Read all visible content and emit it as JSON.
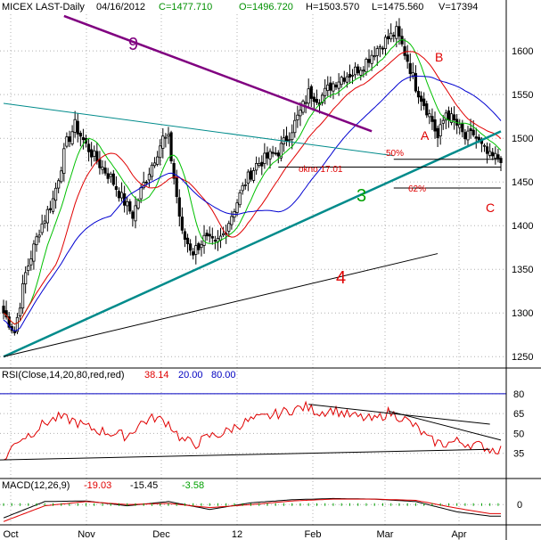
{
  "colors": {
    "background": "#ffffff",
    "grid": "#b0b0b0",
    "candle": "#000000",
    "ma_green": "#00c000",
    "ma_red": "#e00000",
    "ma_blue": "#0000d0",
    "trend_teal": "#008b8b",
    "trend_purple": "#800080",
    "rsi_line": "#e00000",
    "rsi_level_80": "#0000c0",
    "fib_text": "#e00000",
    "macd_black": "#000000",
    "macd_red": "#e00000",
    "macd_green": "#00a000"
  },
  "header": {
    "symbol": "MICEX LAST-Daily",
    "date": "04/16/2012",
    "close": "C=1477.710",
    "open": "O=1496.720",
    "high": "H=1503.570",
    "low": "L=1475.560",
    "volume": "V=17394"
  },
  "rsi_header": {
    "label": "RSI(Close,14,20,80,red,red)",
    "value": "38.14",
    "low_level": "20.00",
    "high_level": "80.00"
  },
  "macd_header": {
    "label": "MACD(12,26,9)",
    "v1": "-19.03",
    "v2": "-15.45",
    "v3": "-3.58"
  },
  "annotations": {
    "line9": "9",
    "line3": "3",
    "line4": "4",
    "point_a": "A",
    "point_b": "B",
    "point_c": "C",
    "fib50": "50%",
    "fib62": "62%",
    "gap": "okno 17.01"
  },
  "chart_data": [
    {
      "type": "candlestick",
      "title": "MICEX LAST-Daily",
      "x_ticks": [
        "Oct",
        "Nov",
        "Dec",
        "12",
        "Feb",
        "Mar",
        "Apr"
      ],
      "y_ticks": [
        1250,
        1300,
        1350,
        1400,
        1450,
        1500,
        1550,
        1600
      ],
      "ylim": [
        1238,
        1642
      ],
      "grid": true,
      "anchors_close": [
        [
          0,
          1300
        ],
        [
          4,
          1278
        ],
        [
          8,
          1345
        ],
        [
          13,
          1395
        ],
        [
          18,
          1430
        ],
        [
          23,
          1495
        ],
        [
          26,
          1515
        ],
        [
          30,
          1492
        ],
        [
          35,
          1470
        ],
        [
          39,
          1455
        ],
        [
          43,
          1432
        ],
        [
          47,
          1412
        ],
        [
          50,
          1440
        ],
        [
          54,
          1470
        ],
        [
          58,
          1500
        ],
        [
          60,
          1498
        ],
        [
          62,
          1455
        ],
        [
          65,
          1390
        ],
        [
          69,
          1370
        ],
        [
          73,
          1385
        ],
        [
          77,
          1378
        ],
        [
          80,
          1390
        ],
        [
          84,
          1420
        ],
        [
          88,
          1450
        ],
        [
          92,
          1470
        ],
        [
          96,
          1478
        ],
        [
          100,
          1485
        ],
        [
          104,
          1505
        ],
        [
          108,
          1530
        ],
        [
          111,
          1552
        ],
        [
          115,
          1545
        ],
        [
          119,
          1560
        ],
        [
          123,
          1570
        ],
        [
          127,
          1575
        ],
        [
          131,
          1585
        ],
        [
          135,
          1600
        ],
        [
          139,
          1612
        ],
        [
          143,
          1622
        ],
        [
          147,
          1590
        ],
        [
          150,
          1560
        ],
        [
          153,
          1540
        ],
        [
          156,
          1520
        ],
        [
          158,
          1500
        ],
        [
          161,
          1530
        ],
        [
          165,
          1515
        ],
        [
          168,
          1500
        ],
        [
          171,
          1505
        ],
        [
          174,
          1490
        ],
        [
          177,
          1478
        ]
      ],
      "moving_averages": [
        {
          "color": "green",
          "period": 10
        },
        {
          "color": "red",
          "period": 20
        },
        {
          "color": "blue",
          "period": 40
        }
      ],
      "trendlines": [
        {
          "name": "9",
          "from": [
            22,
            1640
          ],
          "to": [
            134,
            1508
          ],
          "color": "purple"
        },
        {
          "name": "3",
          "from": [
            0,
            1250
          ],
          "to": [
            181,
            1508
          ],
          "color": "teal"
        },
        {
          "name": "4",
          "from": [
            0,
            1250
          ],
          "to": [
            158,
            1368
          ],
          "color": "black"
        },
        {
          "name": "upper",
          "from": [
            0,
            1540
          ],
          "to": [
            142,
            1480
          ],
          "color": "teal-thin"
        }
      ],
      "levels": [
        {
          "name": "50%",
          "value": 1476
        },
        {
          "name": "okno 17.01",
          "value": 1467
        },
        {
          "name": "62%",
          "value": 1443
        }
      ]
    },
    {
      "type": "line",
      "title": "RSI(Close,14,20,80,red,red)",
      "y_ticks": [
        35,
        50,
        65,
        80
      ],
      "ylim": [
        22,
        88
      ],
      "levels": [
        80
      ],
      "anchors": [
        [
          0,
          30
        ],
        [
          5,
          45
        ],
        [
          10,
          50
        ],
        [
          15,
          58
        ],
        [
          20,
          62
        ],
        [
          25,
          60
        ],
        [
          30,
          55
        ],
        [
          35,
          52
        ],
        [
          40,
          50
        ],
        [
          45,
          48
        ],
        [
          50,
          58
        ],
        [
          55,
          62
        ],
        [
          60,
          58
        ],
        [
          65,
          45
        ],
        [
          70,
          42
        ],
        [
          75,
          48
        ],
        [
          80,
          50
        ],
        [
          85,
          56
        ],
        [
          90,
          60
        ],
        [
          95,
          62
        ],
        [
          100,
          65
        ],
        [
          105,
          68
        ],
        [
          110,
          70
        ],
        [
          115,
          66
        ],
        [
          120,
          68
        ],
        [
          125,
          64
        ],
        [
          130,
          62
        ],
        [
          135,
          60
        ],
        [
          140,
          66
        ],
        [
          145,
          62
        ],
        [
          150,
          55
        ],
        [
          155,
          45
        ],
        [
          160,
          42
        ],
        [
          165,
          44
        ],
        [
          170,
          42
        ],
        [
          175,
          40
        ],
        [
          177,
          38
        ]
      ]
    },
    {
      "type": "line",
      "title": "MACD(12,26,9)",
      "y_ticks": [
        0
      ],
      "ylim": [
        -32,
        18
      ],
      "series": [
        {
          "anchors": [
            [
              0,
              -22
            ],
            [
              15,
              5
            ],
            [
              30,
              6
            ],
            [
              45,
              -2
            ],
            [
              60,
              5
            ],
            [
              75,
              -8
            ],
            [
              90,
              3
            ],
            [
              105,
              8
            ],
            [
              120,
              10
            ],
            [
              135,
              9
            ],
            [
              150,
              5
            ],
            [
              165,
              -12
            ],
            [
              177,
              -19
            ]
          ]
        },
        {
          "anchors": [
            [
              0,
              -28
            ],
            [
              15,
              -2
            ],
            [
              30,
              5
            ],
            [
              45,
              0
            ],
            [
              60,
              2
            ],
            [
              75,
              -5
            ],
            [
              90,
              0
            ],
            [
              105,
              6
            ],
            [
              120,
              9
            ],
            [
              135,
              9
            ],
            [
              150,
              7
            ],
            [
              165,
              -6
            ],
            [
              177,
              -15
            ]
          ]
        }
      ]
    }
  ]
}
